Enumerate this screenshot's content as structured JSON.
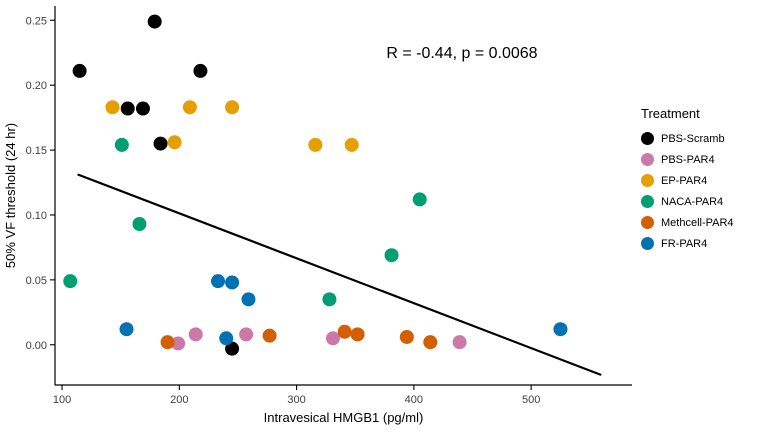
{
  "figure": {
    "background": "#ffffff"
  },
  "chart_data": {
    "type": "scatter",
    "title": "",
    "annotation": "R = -0.44, p = 0.0068",
    "annotation_pos": {
      "x": 441,
      "y": 0.221
    },
    "xlabel": "Intravesical HMGB1 (pg/ml)",
    "ylabel": "50% VF threshold (24 hr)",
    "xlim": [
      94,
      586
    ],
    "ylim": [
      -0.031,
      0.261
    ],
    "x_ticks": [
      100,
      200,
      300,
      400,
      500
    ],
    "y_ticks": [
      0,
      0.05,
      0.1,
      0.15,
      0.2,
      0.25
    ],
    "y_tick_labels": [
      "0.00",
      "0.05",
      "0.10",
      "0.15",
      "0.20",
      "0.25"
    ],
    "grid": false,
    "legend_title": "Treatment",
    "legend_position": "right",
    "axis_color": "#000000",
    "tick_label_color": "#404040",
    "regression_line": {
      "x": [
        114,
        559
      ],
      "y": [
        0.131,
        -0.023
      ],
      "color": "#000000",
      "width": 2.2
    },
    "series": [
      {
        "name": "PBS-Scramb",
        "color": "#000000",
        "points": [
          [
            115,
            0.211
          ],
          [
            179,
            0.249
          ],
          [
            218,
            0.211
          ],
          [
            156,
            0.182
          ],
          [
            169,
            0.182
          ],
          [
            184,
            0.155
          ],
          [
            245,
            -0.003
          ]
        ]
      },
      {
        "name": "PBS-PAR4",
        "color": "#CC79A7",
        "points": [
          [
            199,
            0.001
          ],
          [
            214,
            0.008
          ],
          [
            257,
            0.008
          ],
          [
            331,
            0.005
          ],
          [
            439,
            0.002
          ]
        ]
      },
      {
        "name": "EP-PAR4",
        "color": "#E69F00",
        "points": [
          [
            143,
            0.183
          ],
          [
            209,
            0.183
          ],
          [
            245,
            0.183
          ],
          [
            196,
            0.156
          ],
          [
            316,
            0.154
          ],
          [
            347,
            0.154
          ]
        ]
      },
      {
        "name": "NACA-PAR4",
        "color": "#009E73",
        "points": [
          [
            107,
            0.049
          ],
          [
            151,
            0.154
          ],
          [
            166,
            0.093
          ],
          [
            328,
            0.035
          ],
          [
            405,
            0.112
          ],
          [
            381,
            0.069
          ]
        ]
      },
      {
        "name": "Methcell-PAR4",
        "color": "#D55E00",
        "points": [
          [
            190,
            0.002
          ],
          [
            277,
            0.007
          ],
          [
            341,
            0.01
          ],
          [
            352,
            0.008
          ],
          [
            394,
            0.006
          ],
          [
            414,
            0.002
          ]
        ]
      },
      {
        "name": "FR-PAR4",
        "color": "#0072B2",
        "points": [
          [
            155,
            0.012
          ],
          [
            233,
            0.049
          ],
          [
            245,
            0.048
          ],
          [
            259,
            0.035
          ],
          [
            240,
            0.005
          ],
          [
            525,
            0.012
          ]
        ]
      }
    ]
  }
}
